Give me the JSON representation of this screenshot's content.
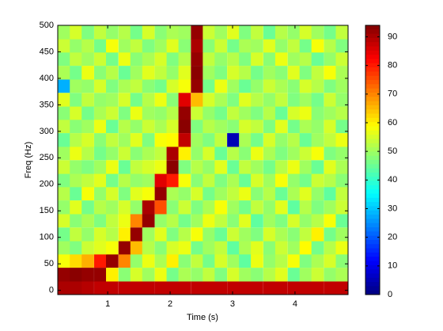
{
  "chart_data": {
    "type": "heatmap",
    "xlabel": "Time (s)",
    "ylabel": "Freq (Hz)",
    "x": [
      0.3,
      0.49,
      0.68,
      0.88,
      1.07,
      1.27,
      1.46,
      1.65,
      1.85,
      2.04,
      2.23,
      2.43,
      2.62,
      2.81,
      3.01,
      3.2,
      3.39,
      3.59,
      3.78,
      3.98,
      4.17,
      4.36,
      4.56,
      4.75
    ],
    "y": [
      5,
      30,
      56,
      81,
      106,
      132,
      157,
      183,
      208,
      233,
      259,
      284,
      310,
      335,
      360,
      386,
      411,
      437,
      462,
      487
    ],
    "z": [
      [
        90,
        90,
        89,
        88,
        88,
        88,
        88,
        88,
        88,
        88,
        88,
        88,
        88,
        88,
        88,
        88,
        88,
        88,
        88,
        88,
        88,
        88,
        88,
        88
      ],
      [
        92,
        93,
        92,
        92,
        60,
        48,
        55,
        50,
        57,
        46,
        51,
        49,
        53,
        47,
        55,
        50,
        48,
        52,
        56,
        45,
        50,
        54,
        49,
        51
      ],
      [
        58,
        62,
        66,
        80,
        92,
        70,
        49,
        57,
        51,
        60,
        48,
        53,
        46,
        55,
        50,
        44,
        57,
        49,
        52,
        58,
        47,
        51,
        55,
        48
      ],
      [
        50,
        47,
        54,
        56,
        58,
        92,
        65,
        52,
        48,
        55,
        57,
        46,
        50,
        53,
        44,
        51,
        56,
        48,
        54,
        50,
        59,
        46,
        52,
        57
      ],
      [
        46,
        53,
        49,
        55,
        52,
        60,
        92,
        50,
        56,
        47,
        52,
        58,
        49,
        45,
        54,
        50,
        47,
        55,
        51,
        48,
        53,
        60,
        46,
        50
      ],
      [
        55,
        48,
        51,
        47,
        53,
        57,
        70,
        92,
        49,
        52,
        46,
        50,
        57,
        53,
        48,
        56,
        44,
        50,
        47,
        55,
        49,
        52,
        58,
        45
      ],
      [
        49,
        56,
        46,
        52,
        50,
        55,
        49,
        90,
        75,
        48,
        54,
        47,
        51,
        58,
        50,
        46,
        53,
        49,
        56,
        44,
        52,
        47,
        50,
        54
      ],
      [
        52,
        45,
        58,
        49,
        55,
        47,
        56,
        58,
        92,
        51,
        49,
        55,
        46,
        50,
        53,
        57,
        48,
        52,
        45,
        51,
        56,
        49,
        44,
        53
      ],
      [
        47,
        51,
        53,
        56,
        46,
        52,
        49,
        50,
        85,
        80,
        58,
        48,
        53,
        47,
        51,
        45,
        55,
        50,
        58,
        49,
        46,
        54,
        52,
        48
      ],
      [
        54,
        49,
        47,
        50,
        57,
        45,
        53,
        55,
        57,
        93,
        47,
        52,
        49,
        56,
        45,
        53,
        50,
        46,
        52,
        57,
        50,
        45,
        56,
        51
      ],
      [
        50,
        57,
        52,
        46,
        49,
        54,
        48,
        51,
        53,
        90,
        60,
        49,
        55,
        45,
        52,
        48,
        57,
        51,
        47,
        50,
        54,
        58,
        47,
        49
      ],
      [
        45,
        52,
        55,
        48,
        53,
        50,
        56,
        47,
        58,
        59,
        88,
        50,
        47,
        53,
        5,
        51,
        46,
        55,
        49,
        52,
        45,
        50,
        53,
        57
      ],
      [
        53,
        48,
        50,
        57,
        45,
        52,
        49,
        54,
        51,
        55,
        93,
        47,
        52,
        50,
        48,
        55,
        53,
        47,
        56,
        46,
        51,
        49,
        55,
        46
      ],
      [
        48,
        55,
        46,
        51,
        54,
        47,
        57,
        50,
        49,
        52,
        92,
        54,
        49,
        46,
        53,
        50,
        47,
        52,
        45,
        55,
        57,
        48,
        50,
        52
      ],
      [
        56,
        47,
        53,
        49,
        50,
        55,
        46,
        52,
        57,
        48,
        85,
        65,
        55,
        51,
        47,
        56,
        52,
        49,
        53,
        47,
        50,
        46,
        54,
        49
      ],
      [
        28,
        50,
        49,
        55,
        47,
        51,
        53,
        48,
        46,
        55,
        58,
        92,
        46,
        57,
        50,
        45,
        49,
        54,
        51,
        48,
        55,
        52,
        47,
        50
      ],
      [
        51,
        46,
        57,
        48,
        52,
        45,
        50,
        56,
        53,
        49,
        56,
        93,
        50,
        47,
        55,
        52,
        46,
        50,
        48,
        56,
        47,
        53,
        58,
        51
      ],
      [
        47,
        53,
        50,
        54,
        46,
        57,
        48,
        51,
        55,
        47,
        52,
        92,
        53,
        49,
        52,
        47,
        55,
        48,
        57,
        50,
        52,
        45,
        49,
        54
      ],
      [
        54,
        49,
        52,
        46,
        58,
        50,
        53,
        47,
        50,
        56,
        48,
        90,
        48,
        54,
        46,
        51,
        50,
        56,
        49,
        53,
        46,
        58,
        52,
        47
      ],
      [
        50,
        55,
        47,
        53,
        49,
        52,
        46,
        55,
        48,
        51,
        50,
        92,
        54,
        50,
        56,
        47,
        53,
        45,
        52,
        49,
        55,
        50,
        46,
        53
      ]
    ],
    "xlim": [
      0.2,
      4.85
    ],
    "ylim": [
      -8,
      500
    ],
    "xticks": [
      1,
      2,
      3,
      4
    ],
    "yticks": [
      0,
      50,
      100,
      150,
      200,
      250,
      300,
      350,
      400,
      450,
      500
    ],
    "colormap": "jet",
    "clim": [
      0,
      94
    ],
    "colorbar_ticks": [
      0,
      10,
      20,
      30,
      40,
      50,
      60,
      70,
      80,
      90
    ]
  }
}
